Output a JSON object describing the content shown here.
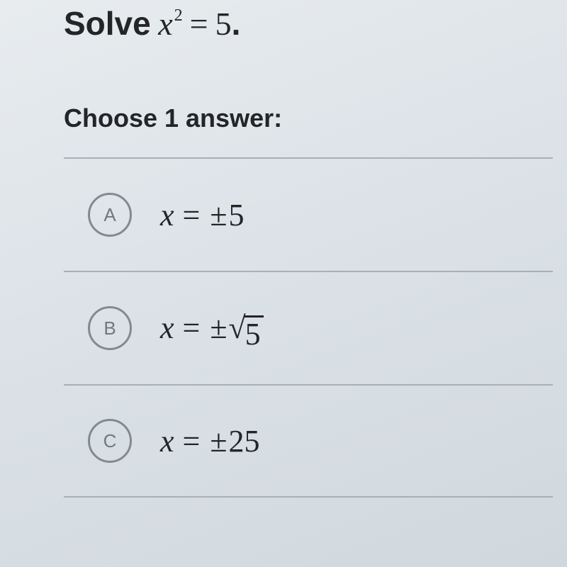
{
  "question": {
    "prefix": "Solve",
    "variable": "x",
    "exponent": "2",
    "equals": "=",
    "rhs": "5",
    "period": "."
  },
  "instructions": "Choose 1 answer:",
  "layout": {
    "divider_color": "#a8afb5",
    "radio_border_color": "#828a91",
    "radio_text_color": "#707880",
    "text_color": "#232527",
    "background_gradient": [
      "#e8ecef",
      "#dde3e8",
      "#d0d8de"
    ],
    "question_fontsize": 46,
    "answer_fontsize": 44,
    "radio_size": 56
  },
  "options": [
    {
      "letter": "A",
      "x": "x",
      "eq": "=",
      "pm": "±",
      "value": "5",
      "sqrt": false
    },
    {
      "letter": "B",
      "x": "x",
      "eq": "=",
      "pm": "±",
      "value": "5",
      "sqrt": true
    },
    {
      "letter": "C",
      "x": "x",
      "eq": "=",
      "pm": "±",
      "value": "25",
      "sqrt": false
    }
  ]
}
